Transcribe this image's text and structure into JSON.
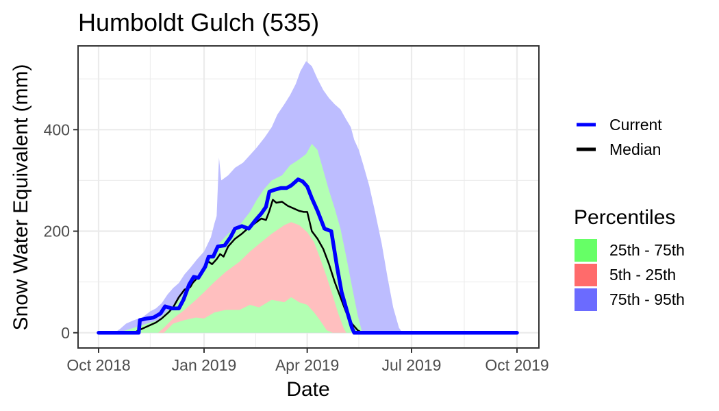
{
  "chart_data": {
    "type": "area",
    "title": "Humboldt Gulch (535)",
    "xlabel": "Date",
    "ylabel": "Snow Water Equivalent (mm)",
    "xlim": [
      "2018-10-01",
      "2019-10-01"
    ],
    "ylim": [
      -30,
      565
    ],
    "x_ticks": [
      {
        "date": "2018-10-01",
        "label": "Oct 2018"
      },
      {
        "date": "2019-01-01",
        "label": "Jan 2019"
      },
      {
        "date": "2019-04-01",
        "label": "Apr 2019"
      },
      {
        "date": "2019-07-01",
        "label": "Jul 2019"
      },
      {
        "date": "2019-10-01",
        "label": "Oct 2019"
      }
    ],
    "x_minor_ticks": [
      "2018-11-15",
      "2019-02-15",
      "2019-05-16",
      "2019-08-16"
    ],
    "y_ticks": [
      0,
      200,
      400
    ],
    "y_minor_ticks": [
      100,
      300,
      500
    ],
    "grid": true,
    "legend": {
      "position": "right",
      "lines_title": "",
      "lines": [
        {
          "name": "Current",
          "color": "#0000ff"
        },
        {
          "name": "Median",
          "color": "#000000"
        }
      ],
      "fills_title": "Percentiles",
      "fills": [
        {
          "name": "25th - 75th",
          "color": "#66ff66"
        },
        {
          "name": "5th - 25th",
          "color": "#ff6b6b"
        },
        {
          "name": "75th - 95th",
          "color": "#6b6bff"
        }
      ]
    },
    "bands": [
      {
        "name": "75th - 95th",
        "fill": "#bdbdff",
        "points": [
          [
            "2018-10-01",
            0,
            0
          ],
          [
            "2018-10-15",
            0,
            0
          ],
          [
            "2018-10-20",
            0,
            8
          ],
          [
            "2018-10-25",
            0,
            18
          ],
          [
            "2018-11-01",
            0,
            25
          ],
          [
            "2018-11-08",
            0,
            30
          ],
          [
            "2018-11-15",
            0,
            42
          ],
          [
            "2018-11-20",
            0,
            48
          ],
          [
            "2018-11-25",
            0,
            58
          ],
          [
            "2018-11-30",
            0,
            75
          ],
          [
            "2018-12-05",
            0,
            88
          ],
          [
            "2018-12-10",
            0,
            98
          ],
          [
            "2018-12-15",
            0,
            115
          ],
          [
            "2018-12-20",
            0,
            128
          ],
          [
            "2018-12-26",
            0,
            145
          ],
          [
            "2019-01-01",
            0,
            160
          ],
          [
            "2019-01-07",
            0,
            188
          ],
          [
            "2019-01-10",
            0,
            215
          ],
          [
            "2019-01-12",
            0,
            230
          ],
          [
            "2019-01-14",
            0,
            345
          ],
          [
            "2019-01-16",
            0,
            300
          ],
          [
            "2019-01-22",
            0,
            310
          ],
          [
            "2019-01-28",
            0,
            325
          ],
          [
            "2019-02-04",
            0,
            335
          ],
          [
            "2019-02-10",
            0,
            350
          ],
          [
            "2019-02-16",
            0,
            365
          ],
          [
            "2019-02-23",
            0,
            385
          ],
          [
            "2019-03-01",
            0,
            405
          ],
          [
            "2019-03-06",
            0,
            430
          ],
          [
            "2019-03-12",
            0,
            450
          ],
          [
            "2019-03-17",
            0,
            468
          ],
          [
            "2019-03-22",
            0,
            490
          ],
          [
            "2019-03-26",
            0,
            515
          ],
          [
            "2019-03-31",
            0,
            535
          ],
          [
            "2019-04-05",
            0,
            525
          ],
          [
            "2019-04-10",
            0,
            500
          ],
          [
            "2019-04-15",
            0,
            478
          ],
          [
            "2019-04-20",
            0,
            462
          ],
          [
            "2019-04-25",
            0,
            450
          ],
          [
            "2019-04-30",
            0,
            440
          ],
          [
            "2019-05-05",
            0,
            420
          ],
          [
            "2019-05-09",
            0,
            405
          ],
          [
            "2019-05-12",
            0,
            380
          ],
          [
            "2019-05-16",
            0,
            360
          ],
          [
            "2019-05-20",
            0,
            330
          ],
          [
            "2019-05-25",
            0,
            290
          ],
          [
            "2019-05-30",
            0,
            240
          ],
          [
            "2019-06-05",
            0,
            175
          ],
          [
            "2019-06-10",
            0,
            110
          ],
          [
            "2019-06-15",
            0,
            50
          ],
          [
            "2019-06-20",
            0,
            10
          ],
          [
            "2019-06-23",
            0,
            0
          ],
          [
            "2019-10-01",
            0,
            0
          ]
        ]
      },
      {
        "name": "25th - 75th",
        "fill": "#b3ffb3",
        "points": [
          [
            "2018-10-01",
            0,
            0
          ],
          [
            "2018-10-18",
            0,
            0
          ],
          [
            "2018-10-22",
            0,
            3
          ],
          [
            "2018-11-01",
            0,
            10
          ],
          [
            "2018-11-15",
            0,
            20
          ],
          [
            "2018-11-22",
            0,
            25
          ],
          [
            "2018-12-01",
            0,
            45
          ],
          [
            "2018-12-10",
            0,
            65
          ],
          [
            "2018-12-20",
            0,
            95
          ],
          [
            "2019-01-01",
            0,
            130
          ],
          [
            "2019-01-08",
            0,
            152
          ],
          [
            "2019-01-15",
            0,
            178
          ],
          [
            "2019-01-22",
            0,
            195
          ],
          [
            "2019-02-01",
            0,
            212
          ],
          [
            "2019-02-10",
            0,
            238
          ],
          [
            "2019-02-16",
            0,
            262
          ],
          [
            "2019-02-22",
            0,
            282
          ],
          [
            "2019-03-01",
            0,
            300
          ],
          [
            "2019-03-10",
            0,
            310
          ],
          [
            "2019-03-17",
            0,
            330
          ],
          [
            "2019-03-24",
            0,
            340
          ],
          [
            "2019-03-31",
            0,
            352
          ],
          [
            "2019-04-05",
            0,
            372
          ],
          [
            "2019-04-10",
            0,
            360
          ],
          [
            "2019-04-15",
            0,
            320
          ],
          [
            "2019-04-20",
            0,
            280
          ],
          [
            "2019-04-25",
            0,
            245
          ],
          [
            "2019-04-30",
            0,
            205
          ],
          [
            "2019-05-05",
            0,
            150
          ],
          [
            "2019-05-10",
            0,
            92
          ],
          [
            "2019-05-15",
            0,
            35
          ],
          [
            "2019-05-19",
            0,
            0
          ],
          [
            "2019-10-01",
            0,
            0
          ]
        ]
      },
      {
        "name": "5th - 25th",
        "fill": "#ffbfbf",
        "points": [
          [
            "2018-10-01",
            0,
            0
          ],
          [
            "2018-11-22",
            0,
            0
          ],
          [
            "2018-11-27",
            0,
            10
          ],
          [
            "2018-12-05",
            18,
            28
          ],
          [
            "2018-12-15",
            25,
            45
          ],
          [
            "2018-12-25",
            30,
            65
          ],
          [
            "2019-01-01",
            28,
            80
          ],
          [
            "2019-01-10",
            40,
            100
          ],
          [
            "2019-01-20",
            45,
            120
          ],
          [
            "2019-02-01",
            45,
            140
          ],
          [
            "2019-02-10",
            55,
            160
          ],
          [
            "2019-02-18",
            50,
            175
          ],
          [
            "2019-03-01",
            65,
            195
          ],
          [
            "2019-03-12",
            60,
            212
          ],
          [
            "2019-03-18",
            70,
            218
          ],
          [
            "2019-03-25",
            60,
            212
          ],
          [
            "2019-04-01",
            55,
            198
          ],
          [
            "2019-04-07",
            40,
            178
          ],
          [
            "2019-04-12",
            25,
            148
          ],
          [
            "2019-04-18",
            5,
            110
          ],
          [
            "2019-04-23",
            0,
            75
          ],
          [
            "2019-04-28",
            0,
            38
          ],
          [
            "2019-05-03",
            0,
            8
          ],
          [
            "2019-05-05",
            0,
            0
          ],
          [
            "2019-10-01",
            0,
            0
          ]
        ]
      }
    ],
    "series": [
      {
        "name": "Median",
        "color": "#000000",
        "points": [
          [
            "2018-10-01",
            0
          ],
          [
            "2018-11-01",
            0
          ],
          [
            "2018-11-05",
            5
          ],
          [
            "2018-11-10",
            10
          ],
          [
            "2018-11-15",
            15
          ],
          [
            "2018-11-20",
            20
          ],
          [
            "2018-11-25",
            28
          ],
          [
            "2018-12-01",
            40
          ],
          [
            "2018-12-05",
            50
          ],
          [
            "2018-12-10",
            70
          ],
          [
            "2018-12-15",
            85
          ],
          [
            "2018-12-20",
            90
          ],
          [
            "2018-12-22",
            98
          ],
          [
            "2018-12-27",
            110
          ],
          [
            "2019-01-01",
            130
          ],
          [
            "2019-01-05",
            140
          ],
          [
            "2019-01-08",
            135
          ],
          [
            "2019-01-12",
            145
          ],
          [
            "2019-01-15",
            155
          ],
          [
            "2019-01-18",
            150
          ],
          [
            "2019-01-22",
            170
          ],
          [
            "2019-01-28",
            185
          ],
          [
            "2019-02-03",
            195
          ],
          [
            "2019-02-08",
            205
          ],
          [
            "2019-02-14",
            215
          ],
          [
            "2019-02-20",
            225
          ],
          [
            "2019-02-24",
            222
          ],
          [
            "2019-02-27",
            240
          ],
          [
            "2019-03-02",
            262
          ],
          [
            "2019-03-05",
            256
          ],
          [
            "2019-03-10",
            258
          ],
          [
            "2019-03-15",
            250
          ],
          [
            "2019-03-20",
            245
          ],
          [
            "2019-03-25",
            240
          ],
          [
            "2019-03-29",
            238
          ],
          [
            "2019-04-01",
            238
          ],
          [
            "2019-04-05",
            200
          ],
          [
            "2019-04-10",
            185
          ],
          [
            "2019-04-15",
            165
          ],
          [
            "2019-04-20",
            135
          ],
          [
            "2019-04-25",
            100
          ],
          [
            "2019-04-30",
            70
          ],
          [
            "2019-05-05",
            40
          ],
          [
            "2019-05-10",
            18
          ],
          [
            "2019-05-15",
            5
          ],
          [
            "2019-05-19",
            0
          ],
          [
            "2019-10-01",
            0
          ]
        ]
      },
      {
        "name": "Current",
        "color": "#0000ff",
        "points": [
          [
            "2018-10-01",
            0
          ],
          [
            "2018-11-05",
            0
          ],
          [
            "2018-11-06",
            25
          ],
          [
            "2018-11-12",
            28
          ],
          [
            "2018-11-18",
            30
          ],
          [
            "2018-11-24",
            38
          ],
          [
            "2018-11-28",
            52
          ],
          [
            "2018-12-04",
            48
          ],
          [
            "2018-12-10",
            48
          ],
          [
            "2018-12-14",
            65
          ],
          [
            "2018-12-19",
            95
          ],
          [
            "2018-12-23",
            110
          ],
          [
            "2018-12-27",
            108
          ],
          [
            "2019-01-02",
            130
          ],
          [
            "2019-01-05",
            150
          ],
          [
            "2019-01-09",
            150
          ],
          [
            "2019-01-13",
            170
          ],
          [
            "2019-01-19",
            172
          ],
          [
            "2019-01-24",
            188
          ],
          [
            "2019-01-28",
            205
          ],
          [
            "2019-02-03",
            210
          ],
          [
            "2019-02-09",
            205
          ],
          [
            "2019-02-15",
            222
          ],
          [
            "2019-02-20",
            235
          ],
          [
            "2019-02-24",
            248
          ],
          [
            "2019-02-27",
            278
          ],
          [
            "2019-03-04",
            282
          ],
          [
            "2019-03-09",
            285
          ],
          [
            "2019-03-14",
            285
          ],
          [
            "2019-03-18",
            290
          ],
          [
            "2019-03-24",
            302
          ],
          [
            "2019-03-28",
            298
          ],
          [
            "2019-04-01",
            288
          ],
          [
            "2019-04-05",
            265
          ],
          [
            "2019-04-10",
            240
          ],
          [
            "2019-04-16",
            205
          ],
          [
            "2019-04-22",
            200
          ],
          [
            "2019-04-27",
            130
          ],
          [
            "2019-05-01",
            80
          ],
          [
            "2019-05-06",
            40
          ],
          [
            "2019-05-10",
            10
          ],
          [
            "2019-05-12",
            0
          ],
          [
            "2019-10-01",
            0
          ]
        ]
      }
    ]
  }
}
